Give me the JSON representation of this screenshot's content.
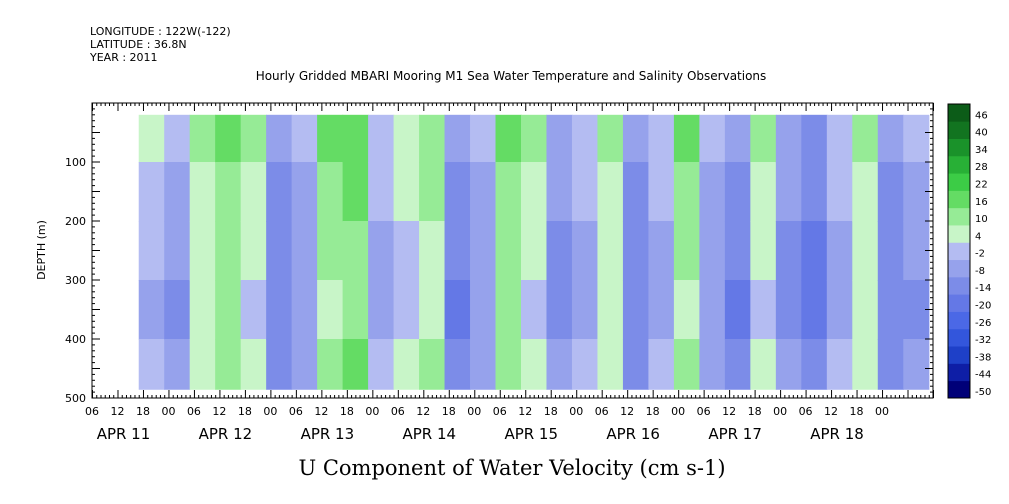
{
  "header": {
    "longitude": "LONGITUDE : 122W(-122)",
    "latitude": "LATITUDE : 36.8N",
    "year": "YEAR : 2011"
  },
  "chart_data": {
    "type": "heatmap",
    "title": "Hourly Gridded MBARI Mooring M1 Sea Water Temperature and Salinity Observations",
    "xlabel": "U Component of Water Velocity (cm s-1)",
    "ylabel": "DEPTH (m)",
    "x_range_hours": [
      0,
      198
    ],
    "x_hour_tick_labels": [
      "06",
      "12",
      "18",
      "00",
      "06",
      "12",
      "18",
      "00",
      "06",
      "12",
      "18",
      "00",
      "06",
      "12",
      "18",
      "00",
      "06",
      "12",
      "18",
      "00",
      "06",
      "12",
      "18",
      "00",
      "06",
      "12",
      "18",
      "00",
      "06",
      "12",
      "18",
      "00"
    ],
    "x_day_labels": [
      "APR 11",
      "APR 12",
      "APR 13",
      "APR 14",
      "APR 15",
      "APR 16",
      "APR 17",
      "APR 18"
    ],
    "ylim": [
      500,
      0
    ],
    "y_ticks": [
      100,
      200,
      300,
      400,
      500
    ],
    "y_tick_labels": [
      "100",
      "200",
      "300",
      "400",
      "500"
    ],
    "data_depth_range": [
      20,
      485
    ],
    "colorbar": {
      "levels": [
        -50,
        -44,
        -38,
        -32,
        -26,
        -20,
        -14,
        -8,
        -2,
        4,
        10,
        16,
        22,
        28,
        34,
        40,
        46
      ],
      "level_labels": [
        "-50",
        "-44",
        "-38",
        "-32",
        "-26",
        "-20",
        "-14",
        "-8",
        "-2",
        "4",
        "10",
        "16",
        "22",
        "28",
        "34",
        "40",
        "46"
      ],
      "colors": [
        "#000078",
        "#0e1ea6",
        "#1e40c8",
        "#3356dc",
        "#4b68e6",
        "#6478e6",
        "#7c8ce8",
        "#96a2ec",
        "#b4bcf2",
        "#c8f5c8",
        "#96eb96",
        "#64dc64",
        "#3ccc46",
        "#28b036",
        "#1a922a",
        "#127420",
        "#0c5c18"
      ]
    },
    "columns": {
      "hours": [
        14,
        20,
        26,
        32,
        38,
        44,
        50,
        56,
        62,
        68,
        74,
        80,
        86,
        92,
        98,
        104,
        110,
        116,
        122,
        128,
        134,
        140,
        146,
        152,
        158,
        164,
        170,
        176,
        182,
        188,
        194
      ],
      "u_values": [
        -2,
        -8,
        6,
        12,
        4,
        -12,
        -6,
        10,
        14,
        -4,
        2,
        8,
        -14,
        -6,
        12,
        4,
        -10,
        -4,
        6,
        -12,
        -4,
        10,
        -6,
        -14,
        4,
        -10,
        -16,
        -4,
        6,
        -12,
        -8
      ]
    },
    "depth_pattern": {
      "depths": [
        20,
        100,
        200,
        300,
        400,
        485
      ],
      "adjust": [
        6,
        2,
        0,
        -2,
        2,
        -2
      ]
    }
  }
}
